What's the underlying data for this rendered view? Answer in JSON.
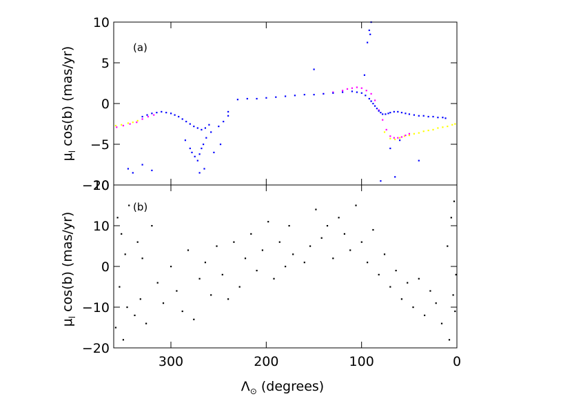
{
  "chart_data": [
    {
      "type": "scatter",
      "panel_label": "(a)",
      "ylabel": "μ_l cos(b)  (mas/yr)",
      "xlim": [
        360,
        0
      ],
      "ylim": [
        -10,
        10
      ],
      "y_ticks": [
        10,
        5,
        0,
        -5,
        -10
      ],
      "grid": false,
      "series": [
        {
          "color": "#ffff00",
          "x": [
            358,
            352,
            345,
            340,
            335,
            76,
            70,
            65,
            60,
            55,
            50,
            45,
            40,
            35,
            30,
            25,
            20,
            15,
            10,
            5,
            2
          ],
          "y": [
            -2.7,
            -2.6,
            -2.4,
            -2.3,
            -2.1,
            -3.5,
            -4.3,
            -4.4,
            -4.2,
            -4.0,
            -3.9,
            -3.7,
            -3.6,
            -3.4,
            -3.3,
            -3.2,
            -3.0,
            -2.9,
            -2.8,
            -2.6,
            -2.5
          ]
        },
        {
          "color": "#ff00ff",
          "x": [
            357,
            350,
            343,
            336,
            330,
            324,
            318,
            140,
            130,
            120,
            115,
            110,
            105,
            100,
            95,
            90,
            86,
            82,
            78,
            74,
            70,
            66,
            62,
            58,
            54,
            50
          ],
          "y": [
            -2.9,
            -2.7,
            -2.5,
            -2.3,
            -1.9,
            -1.6,
            -1.4,
            1.2,
            1.4,
            1.6,
            1.8,
            1.9,
            2.0,
            1.9,
            1.6,
            1.2,
            0.4,
            -0.8,
            -2.0,
            -3.2,
            -4.0,
            -4.2,
            -4.2,
            -4.1,
            -3.9,
            -3.7
          ]
        },
        {
          "color": "#0000ff",
          "x": [
            330,
            325,
            320,
            315,
            310,
            305,
            300,
            296,
            292,
            288,
            284,
            280,
            276,
            272,
            268,
            264,
            260,
            285,
            280,
            278,
            275,
            272,
            270,
            268,
            266,
            263,
            258,
            250,
            245,
            240,
            230,
            220,
            210,
            200,
            190,
            180,
            170,
            160,
            150,
            140,
            130,
            120,
            110,
            105,
            100,
            96,
            92,
            90,
            88,
            86,
            84,
            82,
            80,
            78,
            75,
            72,
            70,
            66,
            62,
            58,
            54,
            50,
            45,
            40,
            35,
            30,
            25,
            20,
            15,
            12,
            150,
            97,
            94,
            92,
            91,
            90,
            345,
            340,
            330,
            320,
            270,
            265,
            255,
            248,
            240,
            60,
            65,
            40,
            70,
            80
          ],
          "y": [
            -1.6,
            -1.4,
            -1.2,
            -1.1,
            -1.0,
            -1.1,
            -1.2,
            -1.4,
            -1.6,
            -1.9,
            -2.2,
            -2.5,
            -2.8,
            -3.0,
            -3.2,
            -3.0,
            -2.6,
            -4.5,
            -5.5,
            -6.0,
            -6.5,
            -7.0,
            -6.2,
            -5.5,
            -5.0,
            -4.2,
            -3.5,
            -2.8,
            -2.2,
            -1.5,
            0.5,
            0.6,
            0.6,
            0.7,
            0.8,
            0.9,
            1.0,
            1.1,
            1.1,
            1.2,
            1.3,
            1.4,
            1.5,
            1.4,
            1.3,
            1.0,
            0.6,
            0.3,
            0.0,
            -0.3,
            -0.6,
            -0.9,
            -1.1,
            -1.3,
            -1.3,
            -1.2,
            -1.1,
            -1.0,
            -1.0,
            -1.1,
            -1.2,
            -1.3,
            -1.4,
            -1.5,
            -1.5,
            -1.6,
            -1.6,
            -1.7,
            -1.7,
            -1.8,
            4.2,
            3.5,
            7.5,
            9.0,
            8.5,
            10.0,
            -8.0,
            -8.5,
            -7.5,
            -8.2,
            -8.5,
            -8.0,
            -6.0,
            -5.0,
            -1.0,
            -4.5,
            -9.0,
            -7.0,
            -5.5,
            -9.5
          ]
        }
      ]
    },
    {
      "type": "scatter",
      "panel_label": "(b)",
      "ylabel": "μ_l cos(b)  (mas/yr)",
      "xlabel": "Λ_⊙  (degrees)",
      "xlim": [
        360,
        0
      ],
      "ylim": [
        -20,
        20
      ],
      "x_ticks": [
        300,
        200,
        100,
        0
      ],
      "y_ticks": [
        20,
        10,
        0,
        -10,
        -20
      ],
      "grid": false,
      "series": [
        {
          "color": "#000000",
          "x": [
            358,
            356,
            354,
            352,
            350,
            348,
            346,
            344,
            338,
            335,
            332,
            330,
            326,
            320,
            314,
            308,
            300,
            294,
            288,
            282,
            276,
            270,
            264,
            258,
            252,
            246,
            240,
            234,
            228,
            222,
            216,
            210,
            204,
            198,
            192,
            186,
            180,
            176,
            172,
            160,
            154,
            148,
            142,
            136,
            130,
            124,
            118,
            112,
            106,
            100,
            94,
            88,
            82,
            76,
            70,
            64,
            58,
            52,
            46,
            40,
            34,
            28,
            22,
            16,
            10,
            8,
            6,
            4,
            3,
            2,
            1
          ],
          "y": [
            -15,
            12,
            -5,
            8,
            -18,
            3,
            -10,
            15,
            -12,
            6,
            -8,
            2,
            -14,
            10,
            -4,
            -9,
            0,
            -6,
            -11,
            4,
            -13,
            -3,
            1,
            -7,
            5,
            -2,
            -8,
            6,
            -5,
            2,
            8,
            -1,
            4,
            11,
            -3,
            6,
            0,
            10,
            3,
            1,
            5,
            14,
            7,
            10,
            2,
            12,
            8,
            4,
            15,
            6,
            1,
            9,
            -2,
            3,
            -5,
            -1,
            -8,
            -4,
            -10,
            -3,
            -12,
            -6,
            -9,
            -14,
            5,
            -18,
            12,
            -7,
            16,
            -11,
            -2
          ]
        }
      ]
    }
  ]
}
